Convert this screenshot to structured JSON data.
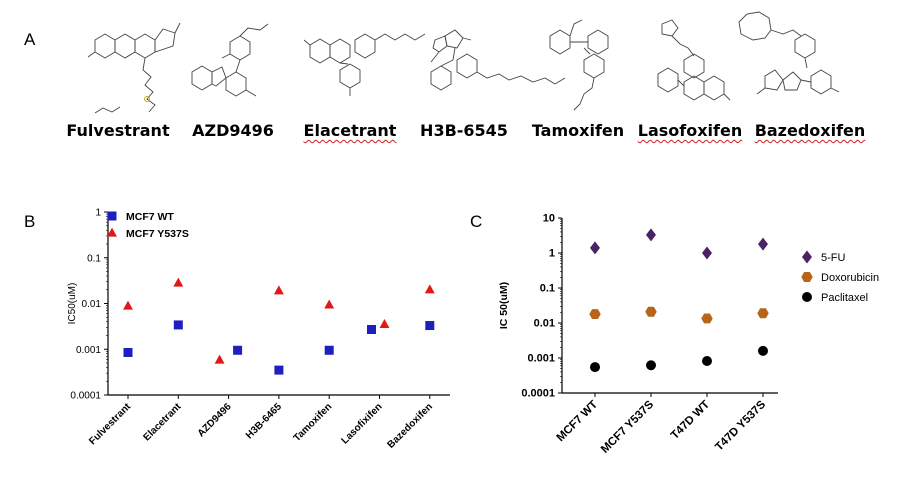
{
  "panel_a": {
    "letter": "A",
    "compounds": [
      {
        "name": "Fulvestrant",
        "squiggle": false
      },
      {
        "name": "AZD9496",
        "squiggle": false
      },
      {
        "name": "Elacetrant",
        "squiggle": true
      },
      {
        "name": "H3B-6545",
        "squiggle": false
      },
      {
        "name": "Tamoxifen",
        "squiggle": false
      },
      {
        "name": "Lasofoxifen",
        "squiggle": true
      },
      {
        "name": "Bazedoxifen",
        "squiggle": true
      }
    ]
  },
  "chart_data": [
    {
      "panel": "B",
      "type": "scatter",
      "ylabel": "IC50(uM)",
      "yscale": "log",
      "ylim": [
        0.0001,
        1
      ],
      "yticks": [
        "1",
        "0.1",
        "0.01",
        "0.001",
        "0.0001"
      ],
      "categories": [
        "Fulvestrant",
        "Elacetrant",
        "AZD9496",
        "H3B-6465",
        "Tamoxifen",
        "Lasofixifen",
        "Bazedoxifen"
      ],
      "legend_position": "top-left",
      "series": [
        {
          "name": "MCF7 WT",
          "marker": "square",
          "color": "#1f1fbf",
          "values": [
            0.00085,
            0.0034,
            0.00095,
            0.00035,
            0.00095,
            0.0027,
            0.0033
          ]
        },
        {
          "name": "MCF7 Y537S",
          "marker": "triangle",
          "color": "#e01818",
          "values": [
            0.0088,
            0.028,
            0.00058,
            0.019,
            0.0093,
            0.0035,
            0.02
          ]
        }
      ]
    },
    {
      "panel": "C",
      "type": "scatter",
      "ylabel": "IC 50(uM)",
      "yscale": "log",
      "ylim": [
        0.0001,
        10
      ],
      "yticks": [
        "10",
        "1",
        "0.1",
        "0.01",
        "0.001",
        "0.0001"
      ],
      "categories": [
        "MCF7 WT",
        "MCF7 Y537S",
        "T47D WT",
        "T47D Y537S"
      ],
      "legend_position": "right",
      "series": [
        {
          "name": "5-FU",
          "marker": "diamond",
          "color": "#4b2266",
          "values": [
            1.4,
            3.3,
            1.0,
            1.8
          ]
        },
        {
          "name": "Doxorubicin",
          "marker": "hexagon",
          "color": "#b8651a",
          "values": [
            0.018,
            0.021,
            0.0135,
            0.019
          ]
        },
        {
          "name": "Paclitaxel",
          "marker": "circle",
          "color": "#000000",
          "values": [
            0.00055,
            0.00062,
            0.00082,
            0.0016
          ]
        }
      ]
    }
  ]
}
